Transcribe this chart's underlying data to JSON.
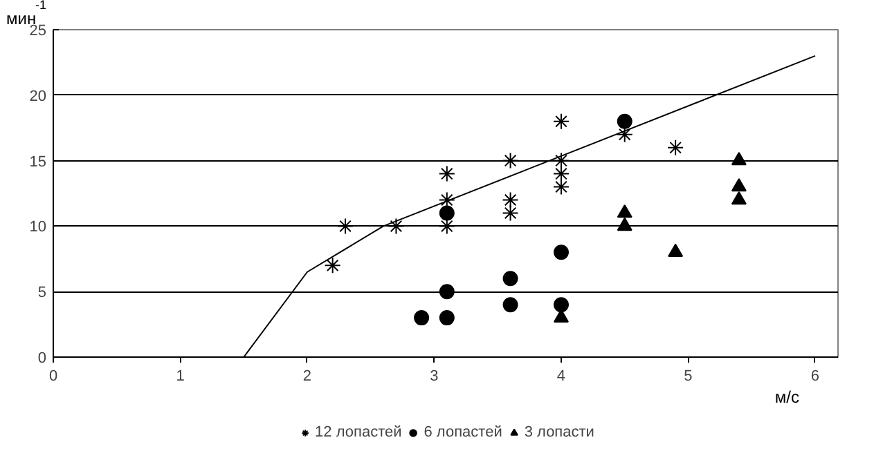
{
  "chart_data": {
    "type": "scatter",
    "xlabel": "м/с",
    "ylabel": "мин$^{-1}$",
    "xlim": [
      0,
      6.18
    ],
    "ylim": [
      0,
      25
    ],
    "xticks": [
      0,
      1,
      2,
      3,
      4,
      5,
      6
    ],
    "yticks": [
      0,
      5,
      10,
      15,
      20,
      25
    ],
    "grid": "y",
    "legend": "bottom",
    "series": [
      {
        "name": "12 лопастей",
        "color": "#000000",
        "marker": "cross",
        "x": [
          2.2,
          2.3,
          2.7,
          3.1,
          3.1,
          3.1,
          3.6,
          3.6,
          3.6,
          4,
          4,
          4,
          4,
          4.5,
          4.9
        ],
        "values": [
          7,
          10,
          10,
          14,
          12,
          10,
          15,
          12,
          11,
          18,
          15,
          14,
          13,
          17,
          16
        ]
      },
      {
        "name": "6 лопастей",
        "color": "#000000",
        "marker": "circle",
        "x": [
          2.9,
          3.1,
          3.1,
          3.1,
          3.6,
          3.6,
          4,
          4,
          4.5
        ],
        "values": [
          3,
          3,
          5,
          11,
          6,
          4,
          8,
          4,
          18
        ]
      },
      {
        "name": "3 лопасти",
        "color": "#000000",
        "marker": "triangle",
        "x": [
          4,
          4.5,
          4.5,
          4.9,
          5.4,
          5.4,
          5.4
        ],
        "values": [
          3,
          11,
          10,
          8,
          15,
          13,
          12
        ]
      },
      {
        "type": "line",
        "color": "#000000",
        "marker": "none",
        "line_style": "solid",
        "x": [
          1.5,
          2,
          2.6,
          6
        ],
        "values": [
          0,
          6.5,
          10,
          23
        ]
      }
    ]
  }
}
